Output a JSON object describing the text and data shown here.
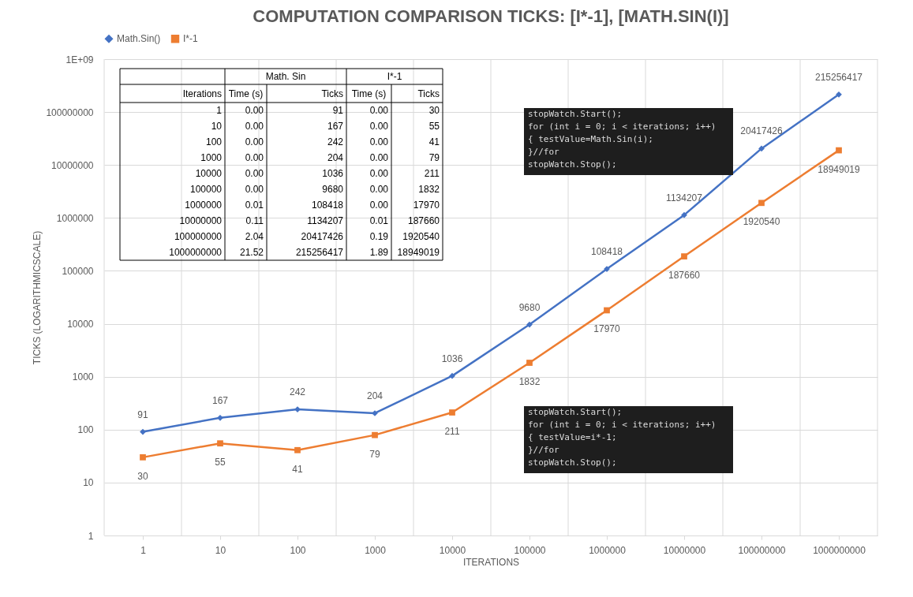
{
  "chart_data": {
    "type": "line",
    "title": "COMPUTATION COMPARISON TICKS: [I*-1], [MATH.SIN(I)]",
    "xlabel": "ITERATIONS",
    "ylabel": "TICKS (LOGARITHMICSCALE)",
    "categories": [
      "1",
      "10",
      "100",
      "1000",
      "10000",
      "100000",
      "1000000",
      "10000000",
      "100000000",
      "1000000000"
    ],
    "series": [
      {
        "name": "Math.Sin()",
        "color": "#4472c4",
        "marker": "diamond",
        "values": [
          91,
          167,
          242,
          204,
          1036,
          9680,
          108418,
          1134207,
          20417426,
          215256417
        ]
      },
      {
        "name": "I*-1",
        "color": "#ed7d31",
        "marker": "square",
        "values": [
          30,
          55,
          41,
          79,
          211,
          1832,
          17970,
          187660,
          1920540,
          18949019
        ]
      }
    ],
    "log": "y",
    "ylim": [
      1,
      1000000000
    ],
    "yticks": [
      1,
      10,
      100,
      1000,
      10000,
      100000,
      1000000,
      10000000,
      100000000,
      {
        "value": 1000000000,
        "label": "1E+09"
      }
    ],
    "grid": true,
    "legend": "top",
    "data_labels": true,
    "line_style": "solid",
    "annotations": [
      "Math. Sin",
      "I*-1",
      "Iterations",
      "Time (s)",
      "Ticks",
      "Time (s)",
      "Ticks",
      "0.00",
      "91",
      "0.00",
      "30",
      "0.00",
      "167",
      "0.00",
      "55",
      "0.00",
      "242",
      "0.00",
      "41",
      "0.00",
      "204",
      "0.00",
      "79",
      "0.00",
      "1036",
      "0.00",
      "211",
      "0.00",
      "9680",
      "0.00",
      "1832",
      "0.01",
      "108418",
      "0.00",
      "17970",
      "0.11",
      "1134207",
      "0.01",
      "187660",
      "2.04",
      "20417426",
      "0.19",
      "1920540",
      "21.52",
      "215256417",
      "1.89",
      "18949019",
      "stopWatch.Start();",
      "for (int i = 0; i < iterations; i++)",
      "{   testValue=Math.Sin(i);",
      "}//for",
      "stopWatch.Stop();",
      "stopWatch.Start();",
      "for (int i = 0; i < iterations; i++)",
      "{   testValue=i*-1;",
      "}//for",
      "stopWatch.Stop();"
    ]
  }
}
